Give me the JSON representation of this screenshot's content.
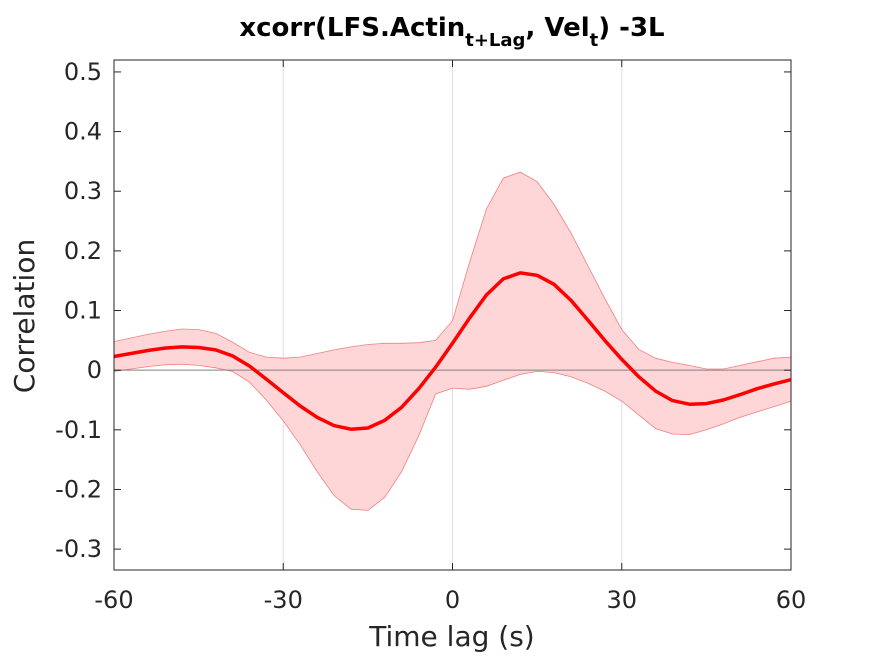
{
  "chart_data": {
    "type": "line",
    "title": {
      "main": "xcorr(LFS.Actin",
      "sub1": "t+Lag",
      "mid": ", Vel",
      "sub2": "t",
      "end": ") -3L"
    },
    "xlabel": "Time lag (s)",
    "ylabel": "Correlation",
    "xlim": [
      -60,
      60
    ],
    "ylim": [
      -0.335,
      0.52
    ],
    "xticks": [
      -60,
      -30,
      0,
      30,
      60
    ],
    "xtick_labels": [
      "-60",
      "-30",
      "0",
      "30",
      "60"
    ],
    "yticks": [
      -0.3,
      -0.2,
      -0.1,
      0,
      0.1,
      0.2,
      0.3,
      0.4,
      0.5
    ],
    "ytick_labels": [
      "-0.3",
      "-0.2",
      "-0.1",
      "0",
      "0.1",
      "0.2",
      "0.3",
      "0.4",
      "0.5"
    ],
    "xgrid": [
      -30,
      0,
      30
    ],
    "zero_line": 0,
    "colors": {
      "line": "#ff0000",
      "band": "#ffd6d8",
      "band_edge": "#f08080",
      "axis": "#262626",
      "grid": "#dddddd",
      "zero": "#808080"
    },
    "x": [
      -60,
      -57,
      -54,
      -51,
      -48,
      -45,
      -42,
      -39,
      -36,
      -33,
      -30,
      -27,
      -24,
      -21,
      -18,
      -15,
      -12,
      -9,
      -6,
      -3,
      0,
      3,
      6,
      9,
      12,
      15,
      18,
      21,
      24,
      27,
      30,
      33,
      36,
      39,
      42,
      45,
      48,
      51,
      54,
      57,
      60
    ],
    "series": [
      {
        "values": [
          0.023,
          0.028,
          0.033,
          0.037,
          0.039,
          0.038,
          0.034,
          0.024,
          0.007,
          -0.015,
          -0.038,
          -0.06,
          -0.079,
          -0.093,
          -0.099,
          -0.097,
          -0.084,
          -0.062,
          -0.031,
          0.005,
          0.045,
          0.087,
          0.126,
          0.153,
          0.163,
          0.159,
          0.144,
          0.117,
          0.084,
          0.05,
          0.018,
          -0.011,
          -0.035,
          -0.051,
          -0.057,
          -0.056,
          -0.05,
          -0.041,
          -0.031,
          -0.023,
          -0.016
        ]
      },
      {
        "values": [
          0.048,
          0.054,
          0.06,
          0.065,
          0.069,
          0.068,
          0.062,
          0.047,
          0.03,
          0.022,
          0.02,
          0.022,
          0.028,
          0.034,
          0.039,
          0.043,
          0.045,
          0.045,
          0.046,
          0.05,
          0.083,
          0.18,
          0.27,
          0.322,
          0.332,
          0.316,
          0.278,
          0.23,
          0.175,
          0.12,
          0.068,
          0.035,
          0.02,
          0.013,
          0.008,
          0.002,
          0.002,
          0.008,
          0.014,
          0.02,
          0.022
        ]
      },
      {
        "values": [
          -0.002,
          0.002,
          0.006,
          0.009,
          0.01,
          0.008,
          0.004,
          -0.002,
          -0.02,
          -0.05,
          -0.085,
          -0.125,
          -0.17,
          -0.21,
          -0.233,
          -0.235,
          -0.213,
          -0.17,
          -0.11,
          -0.04,
          -0.03,
          -0.032,
          -0.027,
          -0.017,
          -0.007,
          -0.002,
          -0.004,
          -0.011,
          -0.022,
          -0.035,
          -0.052,
          -0.075,
          -0.098,
          -0.107,
          -0.108,
          -0.1,
          -0.09,
          -0.079,
          -0.07,
          -0.061,
          -0.052
        ]
      }
    ]
  }
}
